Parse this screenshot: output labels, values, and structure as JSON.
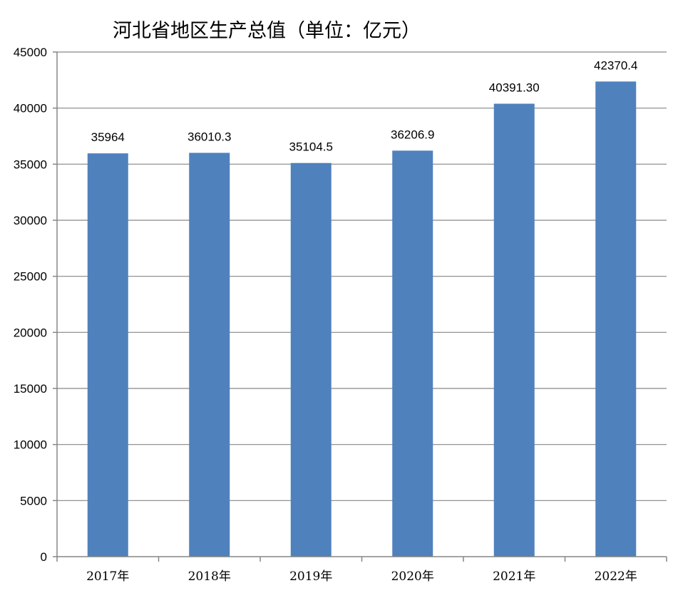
{
  "chart_data": {
    "type": "bar",
    "title": "河北省地区生产总值（单位：亿元）",
    "categories": [
      "2017年",
      "2018年",
      "2019年",
      "2020年",
      "2021年",
      "2022年"
    ],
    "values": [
      35964,
      36010.3,
      35104.5,
      36206.9,
      40391.3,
      42370.4
    ],
    "value_labels": [
      "35964",
      "36010.3",
      "35104.5",
      "36206.9",
      "40391.30",
      "42370.4"
    ],
    "ylim": [
      0,
      45000
    ],
    "yticks": [
      0,
      5000,
      10000,
      15000,
      20000,
      25000,
      30000,
      35000,
      40000,
      45000
    ],
    "grid": true,
    "legend": "none",
    "bar_color": "#4f81bd"
  }
}
